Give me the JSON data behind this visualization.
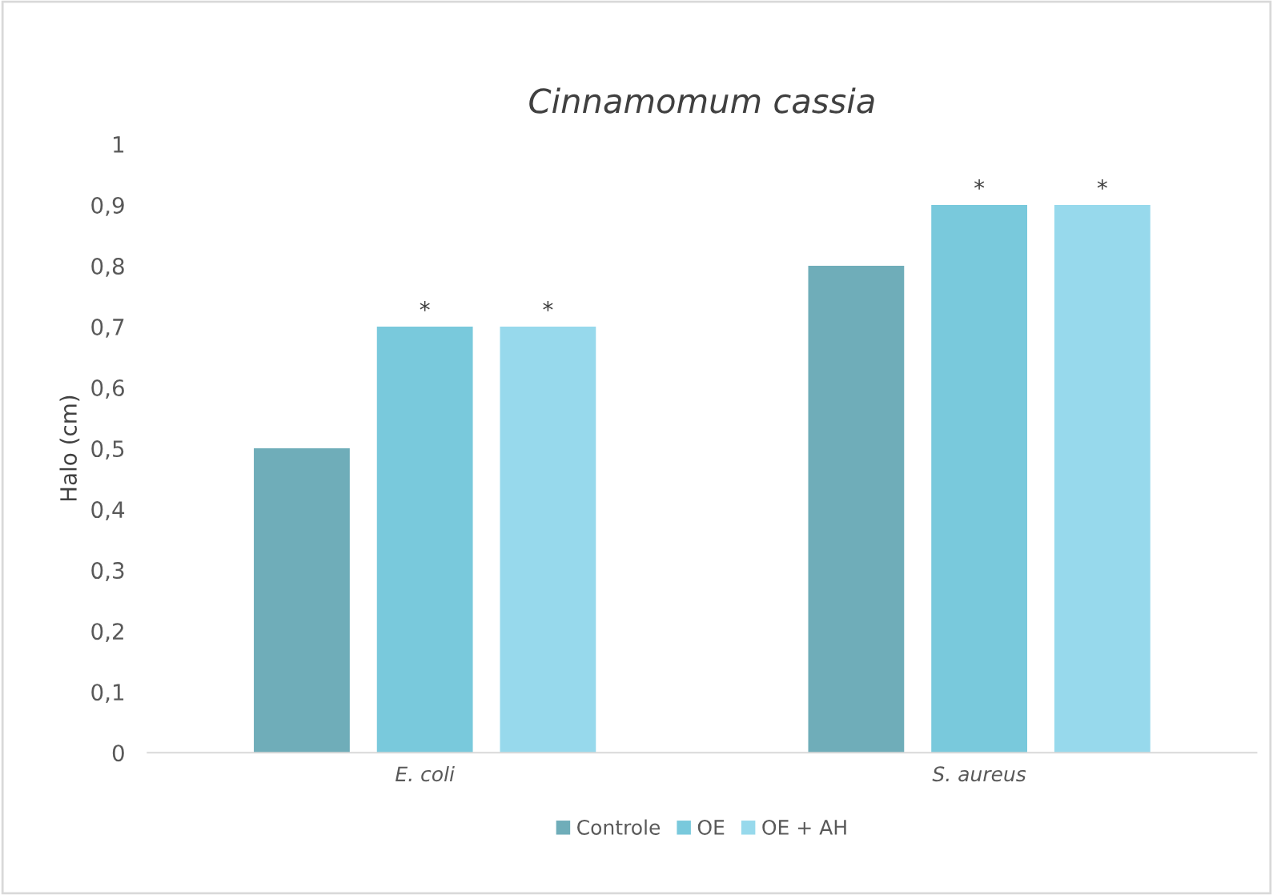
{
  "chart_data": {
    "type": "bar",
    "title": "Cinnamomum cassia",
    "ylabel": "Halo (cm)",
    "categories": [
      "E. coli",
      "S. aureus"
    ],
    "series": [
      {
        "name": "Controle",
        "color": "#6fadb9",
        "values": [
          0.5,
          0.8
        ]
      },
      {
        "name": "OE",
        "color": "#79c9dc",
        "values": [
          0.7,
          0.9
        ],
        "value_labels": [
          "*",
          "*"
        ]
      },
      {
        "name": "OE + AH",
        "color": "#97d9ec",
        "values": [
          0.7,
          0.9
        ],
        "value_labels": [
          "*",
          "*"
        ]
      }
    ],
    "ylim": [
      0,
      1
    ],
    "yticks": [
      {
        "value": 0,
        "label": "0"
      },
      {
        "value": 0.1,
        "label": "0,1"
      },
      {
        "value": 0.2,
        "label": "0,2"
      },
      {
        "value": 0.3,
        "label": "0,3"
      },
      {
        "value": 0.4,
        "label": "0,4"
      },
      {
        "value": 0.5,
        "label": "0,5"
      },
      {
        "value": 0.6,
        "label": "0,6"
      },
      {
        "value": 0.7,
        "label": "0,7"
      },
      {
        "value": 0.8,
        "label": "0,8"
      },
      {
        "value": 0.9,
        "label": "0,9"
      },
      {
        "value": 1,
        "label": "1"
      }
    ],
    "grid": false,
    "legend": "bottom"
  }
}
